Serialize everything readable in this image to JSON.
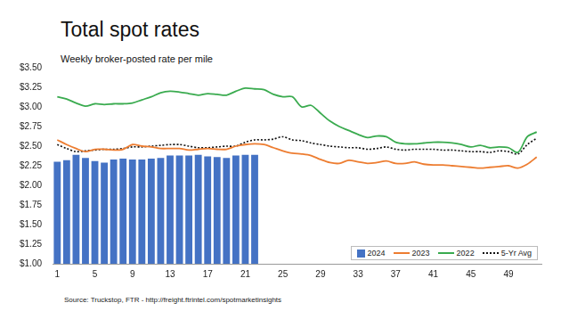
{
  "chart_data": {
    "type": "bar",
    "title": "Total spot rates",
    "subtitle": "Weekly broker-posted rate per mile",
    "source": "Source: Truckstop, FTR - http://freight.ftrintel.com/spotmarketinsights",
    "categories": [
      "1",
      null,
      null,
      null,
      "5",
      null,
      null,
      null,
      "9",
      null,
      null,
      null,
      "13",
      null,
      null,
      null,
      "17",
      null,
      null,
      null,
      "21",
      null,
      null,
      null,
      "25",
      null,
      null,
      null,
      "29",
      null,
      null,
      null,
      "33",
      null,
      null,
      null,
      "37",
      null,
      null,
      null,
      "41",
      null,
      null,
      null,
      "45",
      null,
      null,
      null,
      "49",
      null,
      null,
      null
    ],
    "series": [
      {
        "name": "2024",
        "type": "bar",
        "color": "#4472c4",
        "values": [
          2.3,
          2.32,
          2.39,
          2.35,
          2.31,
          2.29,
          2.33,
          2.34,
          2.33,
          2.33,
          2.34,
          2.35,
          2.38,
          2.38,
          2.38,
          2.39,
          2.37,
          2.36,
          2.35,
          2.38,
          2.39,
          2.39,
          null,
          null,
          null,
          null,
          null,
          null,
          null,
          null,
          null,
          null,
          null,
          null,
          null,
          null,
          null,
          null,
          null,
          null,
          null,
          null,
          null,
          null,
          null,
          null,
          null,
          null,
          null,
          null,
          null,
          null
        ]
      },
      {
        "name": "2023",
        "type": "line",
        "color": "#ed7d31",
        "marker": "none",
        "line_style": "solid",
        "values": [
          2.58,
          2.52,
          2.47,
          2.43,
          2.46,
          2.46,
          2.45,
          2.46,
          2.52,
          2.5,
          2.49,
          2.47,
          2.47,
          2.47,
          2.45,
          2.46,
          2.47,
          2.46,
          2.46,
          2.5,
          2.52,
          2.53,
          2.52,
          2.48,
          2.44,
          2.41,
          2.4,
          2.38,
          2.33,
          2.29,
          2.28,
          2.32,
          2.3,
          2.28,
          2.29,
          2.31,
          2.28,
          2.28,
          2.3,
          2.27,
          2.26,
          2.26,
          2.25,
          2.24,
          2.23,
          2.22,
          2.23,
          2.24,
          2.25,
          2.22,
          2.27,
          2.36
        ]
      },
      {
        "name": "2022",
        "type": "line",
        "color": "#3aab4f",
        "marker": "none",
        "line_style": "solid",
        "values": [
          3.13,
          3.1,
          3.05,
          3.01,
          3.04,
          3.03,
          3.04,
          3.04,
          3.05,
          3.09,
          3.13,
          3.18,
          3.2,
          3.19,
          3.17,
          3.15,
          3.17,
          3.16,
          3.15,
          3.2,
          3.24,
          3.23,
          3.22,
          3.16,
          3.13,
          3.13,
          3.0,
          3.02,
          2.92,
          2.82,
          2.75,
          2.7,
          2.65,
          2.61,
          2.63,
          2.62,
          2.55,
          2.53,
          2.53,
          2.54,
          2.55,
          2.55,
          2.54,
          2.52,
          2.49,
          2.51,
          2.48,
          2.49,
          2.48,
          2.42,
          2.62,
          2.68
        ]
      },
      {
        "name": "5-Yr Avg",
        "type": "line",
        "color": "#111111",
        "marker": "none",
        "line_style": "dotted",
        "values": [
          2.52,
          2.47,
          2.43,
          2.44,
          2.45,
          2.46,
          2.46,
          2.47,
          2.49,
          2.49,
          2.5,
          2.51,
          2.52,
          2.52,
          2.5,
          2.48,
          2.48,
          2.49,
          2.5,
          2.5,
          2.55,
          2.58,
          2.58,
          2.59,
          2.62,
          2.58,
          2.57,
          2.54,
          2.52,
          2.5,
          2.49,
          2.48,
          2.48,
          2.46,
          2.47,
          2.49,
          2.46,
          2.45,
          2.46,
          2.46,
          2.46,
          2.45,
          2.45,
          2.44,
          2.43,
          2.43,
          2.42,
          2.44,
          2.43,
          2.4,
          2.52,
          2.6
        ]
      }
    ],
    "ylim": [
      1.0,
      3.5
    ],
    "yticks": [
      {
        "value": 1.0,
        "label": "$1.00"
      },
      {
        "value": 1.25,
        "label": "$1.25"
      },
      {
        "value": 1.5,
        "label": "$1.50"
      },
      {
        "value": 1.75,
        "label": "$1.75"
      },
      {
        "value": 2.0,
        "label": "$2.00"
      },
      {
        "value": 2.25,
        "label": "$2.25"
      },
      {
        "value": 2.5,
        "label": "$2.50"
      },
      {
        "value": 2.75,
        "label": "$2.75"
      },
      {
        "value": 3.0,
        "label": "$3.00"
      },
      {
        "value": 3.25,
        "label": "$3.25"
      },
      {
        "value": 3.5,
        "label": "$3.50"
      }
    ],
    "grid": false,
    "legend": "lower right"
  }
}
